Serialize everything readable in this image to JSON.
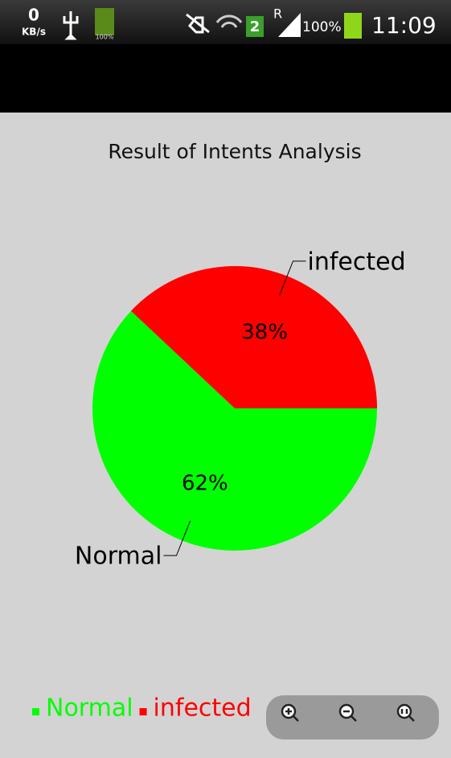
{
  "status_bar": {
    "speed": "0",
    "speed_unit": "KB/s",
    "small_battery": "100%",
    "sim": "2",
    "roaming": "R",
    "battery": "100%",
    "time": "11:09"
  },
  "chart_data": {
    "type": "pie",
    "title": "Result of Intents Analysis",
    "categories": [
      "Normal",
      "infected"
    ],
    "values": [
      62,
      38
    ],
    "value_labels": [
      "62%",
      "38%"
    ],
    "colors": [
      "#00ff00",
      "#ff0000"
    ],
    "legend": "bottom-left"
  }
}
